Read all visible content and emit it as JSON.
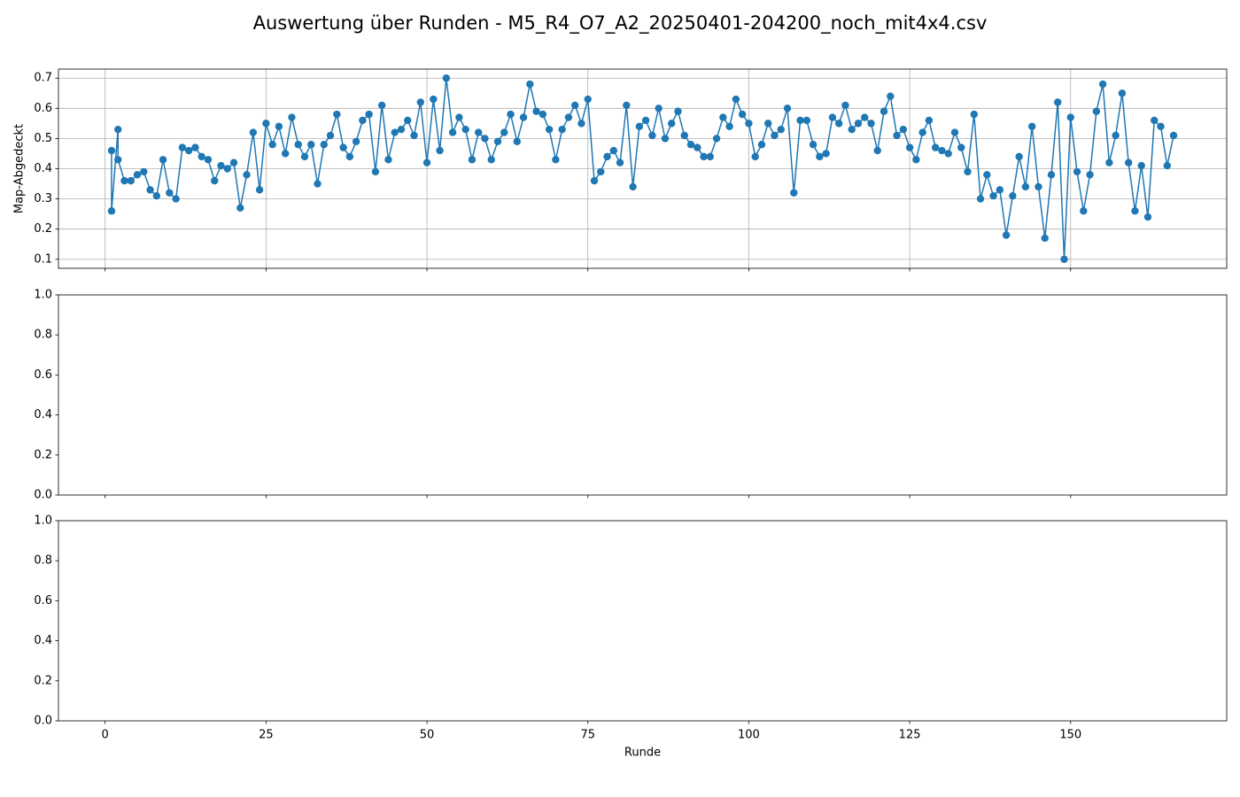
{
  "title": "Auswertung über Runden - M5_R4_O7_A2_20250401-204200_noch_mit4x4.csv",
  "chart_data": [
    {
      "type": "line",
      "ylabel": "Map-Abgedeckt",
      "grid": true,
      "xticklabels": false,
      "xlim": [
        -7.25,
        174.25
      ],
      "xticks": [
        0,
        25,
        50,
        75,
        100,
        125,
        150
      ],
      "ylim": [
        0.07,
        0.73
      ],
      "yticks": [
        0.1,
        0.2,
        0.3,
        0.4,
        0.5,
        0.6,
        0.7
      ],
      "x": [
        1,
        1,
        2,
        2,
        3,
        4,
        5,
        6,
        7,
        8,
        9,
        10,
        11,
        12,
        13,
        14,
        15,
        16,
        17,
        18,
        19,
        20,
        21,
        22,
        23,
        24,
        25,
        26,
        27,
        28,
        29,
        30,
        31,
        32,
        33,
        34,
        35,
        36,
        37,
        38,
        39,
        40,
        41,
        42,
        43,
        44,
        45,
        46,
        47,
        48,
        49,
        50,
        51,
        52,
        53,
        54,
        55,
        56,
        57,
        58,
        59,
        60,
        61,
        62,
        63,
        64,
        65,
        66,
        67,
        68,
        69,
        70,
        71,
        72,
        73,
        74,
        75,
        76,
        77,
        78,
        79,
        80,
        81,
        82,
        83,
        84,
        85,
        86,
        87,
        88,
        89,
        90,
        91,
        92,
        93,
        94,
        95,
        96,
        97,
        98,
        99,
        100,
        101,
        102,
        103,
        104,
        105,
        106,
        107,
        108,
        109,
        110,
        111,
        112,
        113,
        114,
        115,
        116,
        117,
        118,
        119,
        120,
        121,
        122,
        123,
        124,
        125,
        126,
        127,
        128,
        129,
        130,
        131,
        132,
        133,
        134,
        135,
        136,
        137,
        138,
        139,
        140,
        141,
        142,
        143,
        144,
        145,
        146,
        147,
        148,
        149,
        150,
        151,
        152,
        153,
        154,
        155,
        156,
        157,
        158,
        159,
        160,
        161,
        162,
        163,
        164,
        165,
        166
      ],
      "series": [
        {
          "color": "#1f77b4",
          "values": [
            0.46,
            0.26,
            0.53,
            0.43,
            0.36,
            0.36,
            0.38,
            0.39,
            0.33,
            0.31,
            0.43,
            0.32,
            0.3,
            0.47,
            0.46,
            0.47,
            0.44,
            0.43,
            0.36,
            0.41,
            0.4,
            0.42,
            0.27,
            0.38,
            0.52,
            0.33,
            0.55,
            0.48,
            0.54,
            0.45,
            0.57,
            0.48,
            0.44,
            0.48,
            0.35,
            0.48,
            0.51,
            0.58,
            0.47,
            0.44,
            0.49,
            0.56,
            0.58,
            0.39,
            0.61,
            0.43,
            0.52,
            0.53,
            0.56,
            0.51,
            0.62,
            0.42,
            0.63,
            0.46,
            0.7,
            0.52,
            0.57,
            0.53,
            0.43,
            0.52,
            0.5,
            0.43,
            0.49,
            0.52,
            0.58,
            0.49,
            0.57,
            0.68,
            0.59,
            0.58,
            0.53,
            0.43,
            0.53,
            0.57,
            0.61,
            0.55,
            0.63,
            0.36,
            0.39,
            0.44,
            0.46,
            0.42,
            0.61,
            0.34,
            0.54,
            0.56,
            0.51,
            0.6,
            0.5,
            0.55,
            0.59,
            0.51,
            0.48,
            0.47,
            0.44,
            0.44,
            0.5,
            0.57,
            0.54,
            0.63,
            0.58,
            0.55,
            0.44,
            0.48,
            0.55,
            0.51,
            0.53,
            0.6,
            0.32,
            0.56,
            0.56,
            0.48,
            0.44,
            0.45,
            0.57,
            0.55,
            0.61,
            0.53,
            0.55,
            0.57,
            0.55,
            0.46,
            0.59,
            0.64,
            0.51,
            0.53,
            0.47,
            0.43,
            0.52,
            0.56,
            0.47,
            0.46,
            0.45,
            0.52,
            0.47,
            0.39,
            0.58,
            0.3,
            0.38,
            0.31,
            0.33,
            0.18,
            0.31,
            0.44,
            0.34,
            0.54,
            0.34,
            0.17,
            0.38,
            0.62,
            0.1,
            0.57,
            0.39,
            0.26,
            0.38,
            0.59,
            0.68,
            0.42,
            0.51,
            0.65,
            0.42,
            0.26,
            0.41,
            0.24,
            0.56,
            0.54,
            0.41,
            0.51
          ]
        }
      ]
    },
    {
      "type": "line",
      "grid": false,
      "xticklabels": false,
      "xlim": [
        -7.25,
        174.25
      ],
      "xticks": [
        0,
        25,
        50,
        75,
        100,
        125,
        150
      ],
      "ylim": [
        0,
        1
      ],
      "yticks": [
        {
          "value": 0,
          "label": "0.0"
        },
        0.2,
        0.4,
        0.6,
        0.8,
        {
          "value": 1,
          "label": "1.0"
        }
      ]
    },
    {
      "type": "line",
      "grid": false,
      "xticklabels": true,
      "xlabel": "Runde",
      "xlim": [
        -7.25,
        174.25
      ],
      "xticks": [
        0,
        25,
        50,
        75,
        100,
        125,
        150
      ],
      "ylim": [
        0,
        1
      ],
      "yticks": [
        {
          "value": 0,
          "label": "0.0"
        },
        0.2,
        0.4,
        0.6,
        0.8,
        {
          "value": 1,
          "label": "1.0"
        }
      ]
    }
  ]
}
